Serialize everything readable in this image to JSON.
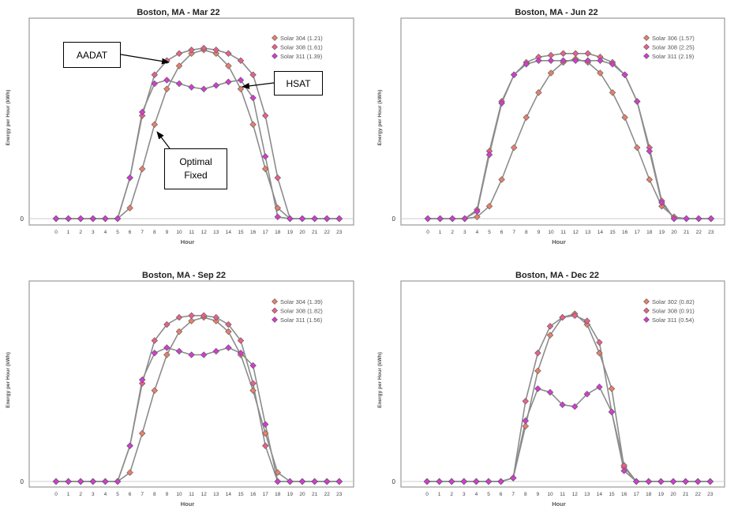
{
  "chart_data": [
    {
      "type": "line",
      "title": "Boston, MA - Mar 22",
      "xlabel": "Hour",
      "ylabel": "Energy per Hour (kWh)",
      "x": [
        0,
        1,
        2,
        3,
        4,
        5,
        6,
        7,
        8,
        9,
        10,
        11,
        12,
        13,
        14,
        15,
        16,
        17,
        18,
        19,
        20,
        21,
        22,
        23
      ],
      "y_tick_labels": [
        "0"
      ],
      "legend_position": "top-right",
      "series": [
        {
          "name": "Solar 304 (1.21)",
          "color": "#e8806a",
          "values": [
            0,
            0,
            0,
            0,
            0,
            0,
            0.06,
            0.28,
            0.53,
            0.73,
            0.86,
            0.93,
            0.95,
            0.93,
            0.86,
            0.73,
            0.53,
            0.28,
            0.06,
            0,
            0,
            0,
            0,
            0
          ]
        },
        {
          "name": "Solar 308 (1.61)",
          "color": "#e8608c",
          "values": [
            0,
            0,
            0,
            0,
            0,
            0,
            0.23,
            0.58,
            0.81,
            0.89,
            0.93,
            0.95,
            0.96,
            0.95,
            0.93,
            0.89,
            0.81,
            0.58,
            0.23,
            0,
            0,
            0,
            0,
            0
          ]
        },
        {
          "name": "Solar 311 (1.39)",
          "color": "#d23cd2",
          "values": [
            0,
            0,
            0,
            0,
            0,
            0,
            0.23,
            0.6,
            0.76,
            0.78,
            0.76,
            0.74,
            0.73,
            0.75,
            0.77,
            0.78,
            0.68,
            0.35,
            0.01,
            0,
            0,
            0,
            0,
            0
          ]
        }
      ],
      "annotations": [
        {
          "text": "AADAT"
        },
        {
          "text": "HSAT"
        },
        {
          "text": "Optimal Fixed"
        }
      ]
    },
    {
      "type": "line",
      "title": "Boston, MA - Jun 22",
      "xlabel": "Hour",
      "ylabel": "Energy per Hour (kWh)",
      "x": [
        0,
        1,
        2,
        3,
        4,
        5,
        6,
        7,
        8,
        9,
        10,
        11,
        12,
        13,
        14,
        15,
        16,
        17,
        18,
        19,
        20,
        21,
        22,
        23
      ],
      "y_tick_labels": [
        "0"
      ],
      "legend_position": "top-right",
      "series": [
        {
          "name": "Solar 306 (1.57)",
          "color": "#e8806a",
          "values": [
            0,
            0,
            0,
            0,
            0.01,
            0.07,
            0.22,
            0.4,
            0.57,
            0.71,
            0.82,
            0.88,
            0.9,
            0.88,
            0.82,
            0.71,
            0.57,
            0.4,
            0.22,
            0.07,
            0.01,
            0,
            0,
            0
          ]
        },
        {
          "name": "Solar 308 (2.25)",
          "color": "#e8608c",
          "values": [
            0,
            0,
            0,
            0,
            0.05,
            0.38,
            0.66,
            0.81,
            0.88,
            0.91,
            0.92,
            0.93,
            0.93,
            0.93,
            0.91,
            0.88,
            0.81,
            0.66,
            0.4,
            0.1,
            0,
            0,
            0,
            0
          ]
        },
        {
          "name": "Solar 311 (2.19)",
          "color": "#d23cd2",
          "values": [
            0,
            0,
            0,
            0,
            0.04,
            0.36,
            0.65,
            0.81,
            0.87,
            0.89,
            0.89,
            0.89,
            0.89,
            0.89,
            0.89,
            0.87,
            0.81,
            0.66,
            0.38,
            0.09,
            0,
            0,
            0,
            0
          ]
        }
      ]
    },
    {
      "type": "line",
      "title": "Boston, MA - Sep 22",
      "xlabel": "Hour",
      "ylabel": "Energy per Hour (kWh)",
      "x": [
        0,
        1,
        2,
        3,
        4,
        5,
        6,
        7,
        8,
        9,
        10,
        11,
        12,
        13,
        14,
        15,
        16,
        17,
        18,
        19,
        20,
        21,
        22,
        23
      ],
      "y_tick_labels": [
        "0"
      ],
      "legend_position": "top-right",
      "series": [
        {
          "name": "Solar 304 (1.39)",
          "color": "#e8806a",
          "values": [
            0,
            0,
            0,
            0,
            0,
            0,
            0.05,
            0.27,
            0.51,
            0.71,
            0.84,
            0.9,
            0.92,
            0.9,
            0.84,
            0.71,
            0.51,
            0.27,
            0.05,
            0,
            0,
            0,
            0,
            0
          ]
        },
        {
          "name": "Solar 308 (1.82)",
          "color": "#e8608c",
          "values": [
            0,
            0,
            0,
            0,
            0,
            0,
            0.2,
            0.55,
            0.79,
            0.88,
            0.92,
            0.93,
            0.93,
            0.92,
            0.88,
            0.79,
            0.55,
            0.2,
            0,
            0,
            0,
            0,
            0,
            0
          ]
        },
        {
          "name": "Solar 311 (1.56)",
          "color": "#d23cd2",
          "values": [
            0,
            0,
            0,
            0,
            0,
            0,
            0.2,
            0.57,
            0.72,
            0.75,
            0.73,
            0.71,
            0.71,
            0.73,
            0.75,
            0.72,
            0.65,
            0.32,
            0,
            0,
            0,
            0,
            0,
            0
          ]
        }
      ]
    },
    {
      "type": "line",
      "title": "Boston, MA - Dec 22",
      "xlabel": "Hour",
      "ylabel": "Energy per Hour (kWh)",
      "x": [
        0,
        1,
        2,
        3,
        4,
        5,
        6,
        7,
        8,
        9,
        10,
        11,
        12,
        13,
        14,
        15,
        16,
        17,
        18,
        19,
        20,
        21,
        22,
        23
      ],
      "y_tick_labels": [
        "0"
      ],
      "legend_position": "top-right",
      "series": [
        {
          "name": "Solar 302 (0.82)",
          "color": "#e8806a",
          "values": [
            0,
            0,
            0,
            0,
            0,
            0,
            0,
            0.02,
            0.31,
            0.62,
            0.82,
            0.92,
            0.94,
            0.88,
            0.72,
            0.52,
            0.08,
            0,
            0,
            0,
            0,
            0,
            0,
            0
          ]
        },
        {
          "name": "Solar 308 (0.91)",
          "color": "#e8608c",
          "values": [
            0,
            0,
            0,
            0,
            0,
            0,
            0,
            0.02,
            0.45,
            0.72,
            0.87,
            0.92,
            0.93,
            0.9,
            0.78,
            0.39,
            0.09,
            0,
            0,
            0,
            0,
            0,
            0,
            0
          ]
        },
        {
          "name": "Solar 311 (0.54)",
          "color": "#d23cd2",
          "values": [
            0,
            0,
            0,
            0,
            0,
            0,
            0,
            0.02,
            0.34,
            0.52,
            0.5,
            0.43,
            0.42,
            0.49,
            0.53,
            0.39,
            0.06,
            0,
            0,
            0,
            0,
            0,
            0,
            0
          ]
        }
      ]
    }
  ]
}
